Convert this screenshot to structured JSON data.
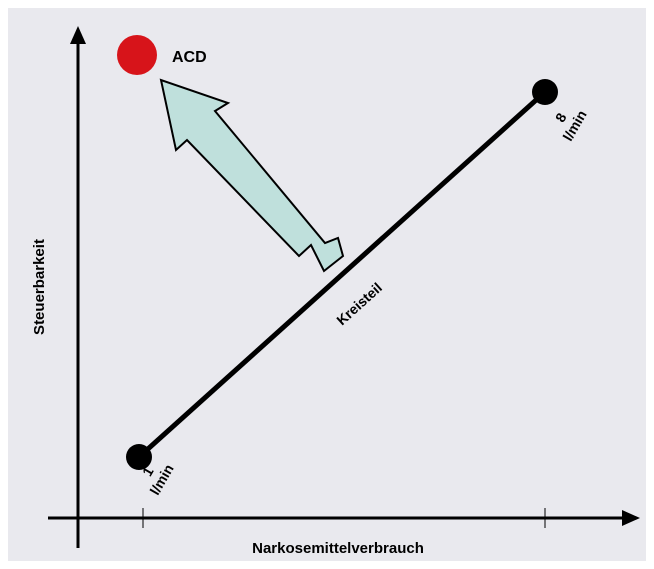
{
  "diagram": {
    "y_axis_label": "Steuerbarkeit",
    "x_axis_label": "Narkosemittelverbrauch",
    "line_label": "Kreisteil",
    "start_point": {
      "value": "1",
      "unit": "l/min"
    },
    "end_point": {
      "value": "8",
      "unit": "l/min"
    },
    "target_label": "ACD",
    "colors": {
      "background": "#e9e9ee",
      "target_dot": "#d7141a",
      "arrow_fill": "#bfe0dc",
      "line": "#000000"
    }
  }
}
